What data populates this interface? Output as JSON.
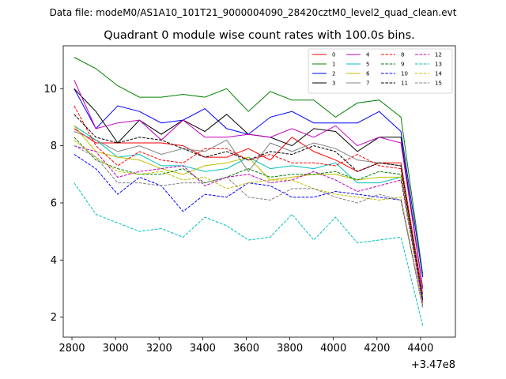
{
  "figure": {
    "suptitle": "Data file: modeM0/AS1A10_101T21_9000004090_28420cztM0_level2_quad_clean.evt"
  },
  "chart_data": {
    "type": "line",
    "title": "Quadrant 0 module wise count rates with 100.0s bins.",
    "xlabel": "",
    "ylabel": "",
    "x_offset_label": "+3.47e8",
    "xlim": [
      2760,
      4560
    ],
    "ylim": [
      1.3,
      11.5
    ],
    "xticks": [
      2800,
      3000,
      3200,
      3400,
      3600,
      3800,
      4000,
      4200,
      4400
    ],
    "yticks": [
      2,
      4,
      6,
      8,
      10
    ],
    "grid": false,
    "legend_position": "top-right",
    "x": [
      2810,
      2910,
      3010,
      3110,
      3210,
      3310,
      3410,
      3510,
      3610,
      3710,
      3810,
      3910,
      4010,
      4110,
      4210,
      4310,
      4410
    ],
    "series": [
      {
        "name": "0",
        "color": "#ff0000",
        "style": "solid",
        "values": [
          8.6,
          8.1,
          8.1,
          8.1,
          8.1,
          8.0,
          7.6,
          7.6,
          7.9,
          7.5,
          8.3,
          7.8,
          7.5,
          7.1,
          7.4,
          7.4,
          2.8
        ]
      },
      {
        "name": "1",
        "color": "#008000",
        "style": "solid",
        "values": [
          11.1,
          10.7,
          10.1,
          9.7,
          9.7,
          9.8,
          9.7,
          10.0,
          9.2,
          9.9,
          9.6,
          9.6,
          9.0,
          9.5,
          9.6,
          9.0,
          3.5
        ]
      },
      {
        "name": "2",
        "color": "#0000ff",
        "style": "solid",
        "values": [
          10.0,
          8.6,
          9.4,
          9.2,
          8.8,
          8.9,
          9.3,
          8.6,
          8.4,
          9.0,
          9.2,
          8.8,
          8.8,
          8.8,
          9.2,
          8.5,
          3.4
        ]
      },
      {
        "name": "3",
        "color": "#000000",
        "style": "solid",
        "values": [
          10.0,
          9.2,
          8.1,
          8.9,
          8.4,
          8.9,
          8.5,
          9.1,
          8.4,
          8.3,
          8.0,
          8.6,
          8.5,
          7.8,
          8.3,
          8.3,
          3.0
        ]
      },
      {
        "name": "4",
        "color": "#c000c0",
        "style": "solid",
        "values": [
          10.3,
          8.6,
          8.8,
          8.9,
          8.2,
          8.9,
          8.3,
          8.3,
          8.4,
          8.3,
          8.6,
          8.3,
          8.7,
          8.0,
          8.3,
          8.1,
          3.0
        ]
      },
      {
        "name": "5",
        "color": "#00bfbf",
        "style": "solid",
        "values": [
          8.7,
          8.2,
          7.6,
          7.7,
          7.3,
          7.3,
          7.1,
          7.2,
          7.6,
          7.2,
          7.3,
          7.2,
          7.4,
          6.7,
          6.7,
          6.9,
          2.7
        ]
      },
      {
        "name": "6",
        "color": "#bfbf00",
        "style": "solid",
        "values": [
          8.7,
          7.8,
          7.6,
          7.5,
          7.2,
          7.0,
          7.3,
          7.4,
          7.6,
          6.8,
          6.9,
          7.0,
          7.0,
          6.8,
          6.9,
          6.9,
          2.6
        ]
      },
      {
        "name": "7",
        "color": "#808080",
        "style": "solid",
        "values": [
          8.5,
          8.2,
          7.8,
          8.0,
          7.7,
          7.9,
          7.8,
          8.2,
          7.1,
          8.1,
          7.8,
          8.1,
          7.9,
          7.5,
          7.4,
          7.3,
          2.6
        ]
      },
      {
        "name": "8",
        "color": "#ff0000",
        "style": "dashed",
        "values": [
          9.4,
          8.0,
          7.3,
          7.8,
          7.5,
          7.4,
          7.9,
          7.9,
          7.5,
          7.7,
          7.4,
          7.4,
          7.3,
          7.7,
          7.3,
          7.2,
          2.5
        ]
      },
      {
        "name": "9",
        "color": "#008000",
        "style": "dashed",
        "values": [
          8.3,
          7.5,
          7.2,
          7.0,
          7.0,
          7.2,
          6.7,
          6.9,
          7.2,
          6.9,
          7.0,
          7.0,
          7.1,
          6.8,
          7.1,
          7.0,
          2.6
        ]
      },
      {
        "name": "10",
        "color": "#0000ff",
        "style": "dashed",
        "values": [
          7.7,
          7.2,
          6.3,
          6.9,
          6.6,
          5.7,
          6.3,
          6.2,
          6.7,
          6.6,
          6.2,
          6.2,
          6.4,
          6.3,
          6.2,
          6.1,
          2.4
        ]
      },
      {
        "name": "11",
        "color": "#000000",
        "style": "dashed",
        "values": [
          9.1,
          8.3,
          8.1,
          8.3,
          8.2,
          7.9,
          7.6,
          7.8,
          7.5,
          7.8,
          7.7,
          8.0,
          7.8,
          7.1,
          7.4,
          7.3,
          2.6
        ]
      },
      {
        "name": "12",
        "color": "#c000c0",
        "style": "dashed",
        "values": [
          8.0,
          7.8,
          6.9,
          7.1,
          7.2,
          7.3,
          6.6,
          6.9,
          7.0,
          6.7,
          6.8,
          7.1,
          6.8,
          6.4,
          6.6,
          6.8,
          2.5
        ]
      },
      {
        "name": "13",
        "color": "#00bfbf",
        "style": "dashed",
        "values": [
          6.7,
          5.6,
          5.3,
          5.0,
          5.1,
          4.8,
          5.5,
          5.2,
          4.7,
          4.8,
          5.6,
          4.7,
          5.5,
          4.6,
          4.7,
          4.8,
          1.7
        ]
      },
      {
        "name": "14",
        "color": "#bfbf00",
        "style": "dashed",
        "values": [
          8.2,
          7.6,
          7.1,
          7.0,
          7.1,
          6.8,
          6.9,
          6.5,
          6.7,
          6.8,
          6.8,
          6.5,
          6.3,
          6.2,
          6.1,
          6.2,
          2.4
        ]
      },
      {
        "name": "15",
        "color": "#808080",
        "style": "dashed",
        "values": [
          8.0,
          7.6,
          6.7,
          6.7,
          6.6,
          6.7,
          6.7,
          6.9,
          6.2,
          6.1,
          6.5,
          6.5,
          6.2,
          6.0,
          6.3,
          6.1,
          2.3
        ]
      }
    ]
  }
}
